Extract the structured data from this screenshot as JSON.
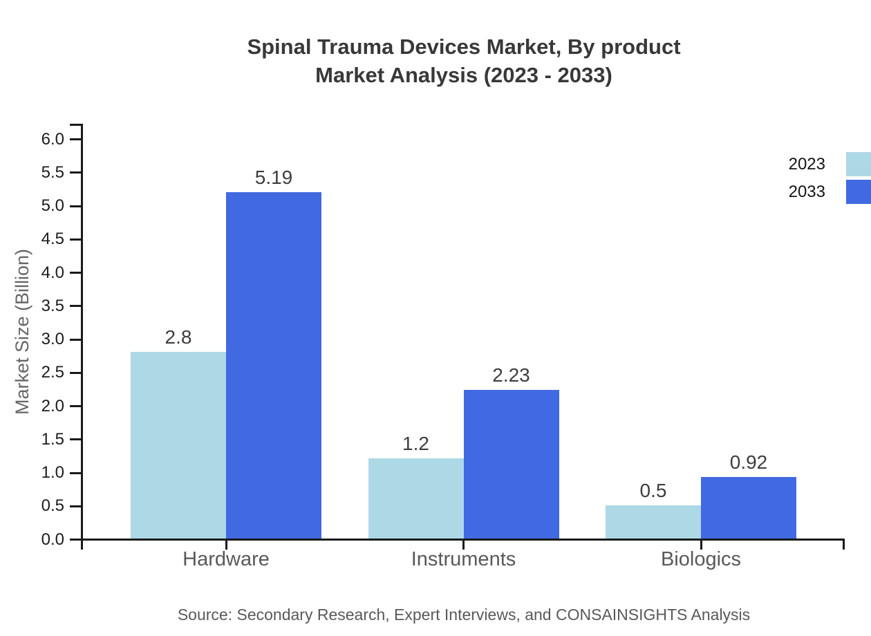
{
  "title": {
    "line1": "Spinal Trauma Devices Market, By product",
    "line2": "Market Analysis (2023 - 2033)"
  },
  "source": "Source: Secondary Research, Expert Interviews, and CONSAINSIGHTS Analysis",
  "chart_data": {
    "type": "bar",
    "title": "Spinal Trauma Devices Market, By product Market Analysis (2023 - 2033)",
    "categories": [
      "Hardware",
      "Instruments",
      "Biologics"
    ],
    "series": [
      {
        "name": "2023",
        "color": "#ADD8E6",
        "values": [
          2.8,
          1.2,
          0.5
        ],
        "labels": [
          "2.8",
          "1.2",
          "0.5"
        ]
      },
      {
        "name": "2033",
        "color": "#4169E1",
        "values": [
          5.19,
          2.23,
          0.92
        ],
        "labels": [
          "5.19",
          "2.23",
          "0.92"
        ]
      }
    ],
    "xlabel": "",
    "ylabel": "Market Size (Billion)",
    "ylim": [
      0,
      6
    ],
    "ytick_labels": [
      "0.0",
      "0.5",
      "1.0",
      "1.5",
      "2.0",
      "2.5",
      "3.0",
      "3.5",
      "4.0",
      "4.5",
      "5.0",
      "5.5",
      "6.0"
    ],
    "grid": false,
    "legend_position": "top-right",
    "bar_value_labels": true,
    "axis_color": "#1a1a1a"
  }
}
